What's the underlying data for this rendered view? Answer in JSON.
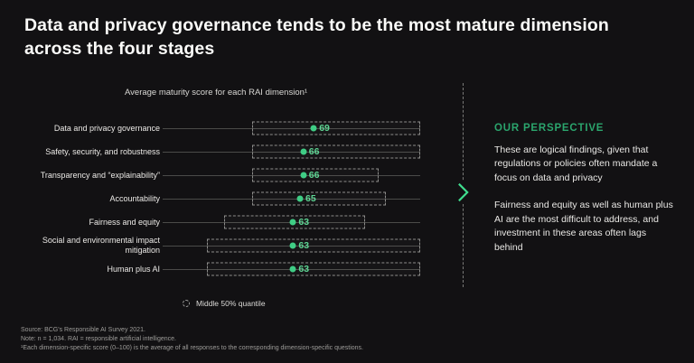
{
  "page": {
    "title": "Data and privacy governance tends to be the most mature dimension across the four stages"
  },
  "chart": {
    "subtitle": "Average maturity score for each RAI dimension¹",
    "legend_label": "Middle 50% quantile"
  },
  "chart_data": {
    "type": "scatter",
    "title": "Average maturity score for each RAI dimension¹",
    "categories": [
      "Data and privacy governance",
      "Safety, security, and robustness",
      "Transparency and “explainability”",
      "Accountability",
      "Fairness and equity",
      "Social and environmental impact mitigation",
      "Human plus AI"
    ],
    "values": [
      69,
      66,
      66,
      65,
      63,
      63,
      63
    ],
    "middle_50_quantile": [
      [
        51,
        100
      ],
      [
        51,
        100
      ],
      [
        51,
        88
      ],
      [
        51,
        90
      ],
      [
        43,
        84
      ],
      [
        38,
        100
      ],
      [
        38,
        100
      ]
    ],
    "scale": {
      "min": 25,
      "max": 100
    },
    "legend": [
      "Middle 50% quantile"
    ],
    "grid": false,
    "legend_position": "bottom"
  },
  "perspective": {
    "heading": "OUR PERSPECTIVE",
    "paragraphs": [
      "These are logical findings, given that regulations or policies often mandate a focus on data and privacy",
      "Fairness and equity as well as human plus AI are the most difficult to address, and investment in these areas often lags behind"
    ]
  },
  "footer": {
    "lines": [
      "Source: BCG's Responsible AI Survey 2021.",
      "Note: n = 1,034. RAI = responsible artificial intelligence.",
      "¹Each dimension-specific score (0–100) is the average of all responses to the corresponding dimension-specific questions."
    ]
  },
  "colors": {
    "background": "#121113",
    "dot_green": "#3fcd85",
    "value_green": "#5ed694",
    "heading_green": "#2ba56d",
    "chevron_green": "#3fdd8e"
  }
}
